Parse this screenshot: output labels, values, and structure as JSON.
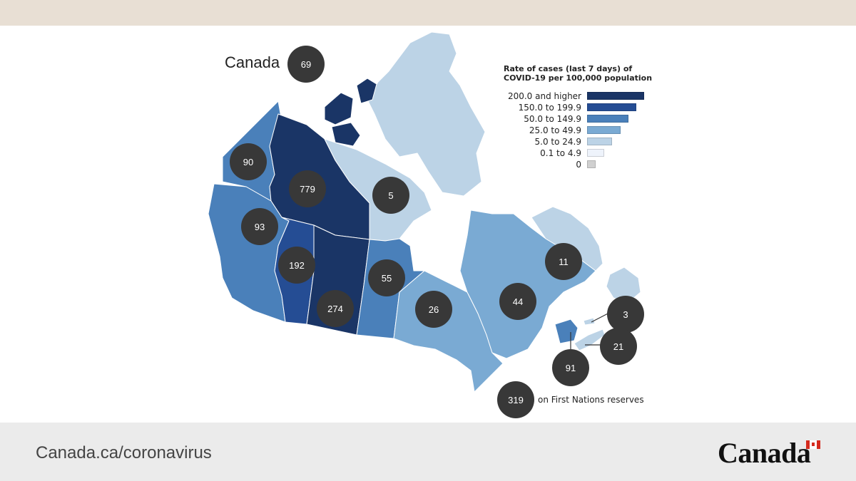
{
  "map": {
    "title": "Canada",
    "national_rate": "69",
    "legend": {
      "title": "Rate of cases (last 7 days) of COVID-19 per 100,000 population",
      "items": [
        {
          "label": "200.0 and higher",
          "color": "#1a3566"
        },
        {
          "label": "150.0 to 199.9",
          "color": "#254d94"
        },
        {
          "label": "50.0 to 149.9",
          "color": "#4a80ba"
        },
        {
          "label": "25.0 to 49.9",
          "color": "#7aaad3"
        },
        {
          "label": "5.0 to 24.9",
          "color": "#bcd3e6"
        },
        {
          "label": "0.1 to 4.9",
          "color": "#eef3fb"
        },
        {
          "label": "0",
          "color": "#d0d0d0"
        }
      ]
    },
    "regions": [
      {
        "name": "British Columbia",
        "rate": "93"
      },
      {
        "name": "Yukon",
        "rate": "90"
      },
      {
        "name": "Northwest Territories",
        "rate": "779"
      },
      {
        "name": "Nunavut",
        "rate": "5"
      },
      {
        "name": "Alberta",
        "rate": "192"
      },
      {
        "name": "Saskatchewan",
        "rate": "274"
      },
      {
        "name": "Manitoba",
        "rate": "55"
      },
      {
        "name": "Ontario",
        "rate": "26"
      },
      {
        "name": "Quebec",
        "rate": "44"
      },
      {
        "name": "Newfoundland and Labrador",
        "rate": "11"
      },
      {
        "name": "Prince Edward Island",
        "rate": "3"
      },
      {
        "name": "Nova Scotia",
        "rate": "21"
      },
      {
        "name": "New Brunswick",
        "rate": "91"
      }
    ],
    "first_nations": {
      "rate": "319",
      "label": "on First Nations reserves"
    }
  },
  "footer": {
    "url": "Canada.ca/coronavirus",
    "wordmark": "Canada"
  }
}
